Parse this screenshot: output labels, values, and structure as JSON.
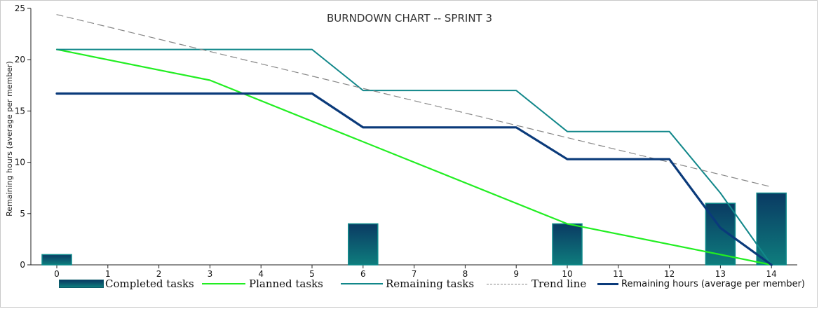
{
  "chart_data": {
    "type": "bar+line",
    "title": "BURNDOWN CHART -- SPRINT 3",
    "ylabel": "Remaining hours (average per member)",
    "xlabel": "",
    "ylim": [
      0,
      25
    ],
    "yticks": [
      0,
      5,
      10,
      15,
      20,
      25
    ],
    "x": [
      0,
      1,
      2,
      3,
      4,
      5,
      6,
      7,
      8,
      9,
      10,
      11,
      12,
      13,
      14
    ],
    "xtick_labels": [
      "0",
      "1",
      "2",
      "3",
      "4",
      "5",
      "6",
      "7",
      "8",
      "9",
      "10",
      "11",
      "12",
      "13",
      "14"
    ],
    "series": [
      {
        "name": "Completed tasks",
        "kind": "bar",
        "color": "#0b4a6a",
        "values": [
          1,
          null,
          null,
          null,
          null,
          null,
          4,
          null,
          null,
          null,
          4,
          null,
          null,
          6,
          7
        ]
      },
      {
        "name": "Planned tasks",
        "kind": "line",
        "color": "#22ee22",
        "points": [
          [
            0,
            21
          ],
          [
            3,
            18
          ],
          [
            10,
            4
          ],
          [
            14,
            0
          ]
        ]
      },
      {
        "name": "Remaining tasks",
        "kind": "line",
        "color": "#11878a",
        "points": [
          [
            0,
            21
          ],
          [
            5,
            21
          ],
          [
            6,
            17
          ],
          [
            9,
            17
          ],
          [
            10,
            13
          ],
          [
            12,
            13
          ],
          [
            13,
            7
          ],
          [
            14,
            0
          ]
        ]
      },
      {
        "name": "Trend line",
        "kind": "line",
        "dashed": true,
        "color": "#888888",
        "points": [
          [
            0,
            24.4
          ],
          [
            14,
            7.6
          ]
        ]
      },
      {
        "name": "Remaining hours (average per member)",
        "kind": "line",
        "color": "#0a3a7a",
        "points": [
          [
            0,
            16.7
          ],
          [
            5,
            16.7
          ],
          [
            6,
            13.4
          ],
          [
            9,
            13.4
          ],
          [
            10,
            10.3
          ],
          [
            12,
            10.3
          ],
          [
            13,
            3.6
          ],
          [
            14,
            0
          ]
        ]
      }
    ],
    "legend_position": "bottom"
  }
}
